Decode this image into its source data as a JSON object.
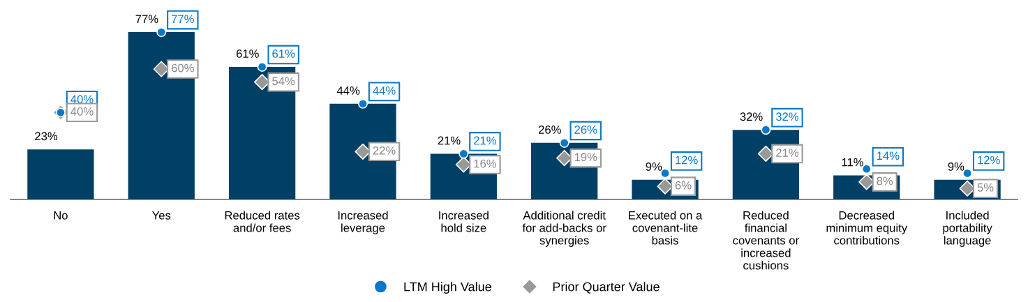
{
  "chart_data": {
    "type": "bar",
    "categories": [
      "No",
      "Yes",
      "Reduced rates\nand/or fees",
      "Increased\nleverage",
      "Increased\nhold size",
      "Additional credit\nfor add-backs or\nsynergies",
      "Executed on a\ncovenant-lite\nbasis",
      "Reduced\nfinancial\ncovenants or\nincreased\ncushions",
      "Decreased\nminimum equity\ncontributions",
      "Included\nportability\nlanguage"
    ],
    "series": [
      {
        "color": "#003f66",
        "values": [
          23,
          77,
          61,
          44,
          21,
          26,
          9,
          32,
          11,
          9
        ],
        "value_labels": [
          "23%",
          "77%",
          "61%",
          "44%",
          "21%",
          "26%",
          "9%",
          "32%",
          "11%",
          "9%"
        ]
      },
      {
        "type": "scatter",
        "name": "LTM High Value",
        "color": "#0a78c8",
        "marker": "circle",
        "values": [
          40,
          77,
          61,
          44,
          21,
          26,
          12,
          32,
          14,
          12
        ],
        "value_labels": [
          "40%",
          "77%",
          "61%",
          "44%",
          "21%",
          "26%",
          "12%",
          "32%",
          "14%",
          "12%"
        ]
      },
      {
        "type": "scatter",
        "name": "Prior Quarter Value",
        "color": "#999999",
        "marker": "diamond",
        "values": [
          40,
          60,
          54,
          22,
          16,
          19,
          6,
          21,
          8,
          5
        ],
        "value_labels": [
          "40%",
          "60%",
          "54%",
          "22%",
          "16%",
          "19%",
          "6%",
          "21%",
          "8%",
          "5%"
        ]
      }
    ],
    "legend": "bottom",
    "grid": false
  }
}
